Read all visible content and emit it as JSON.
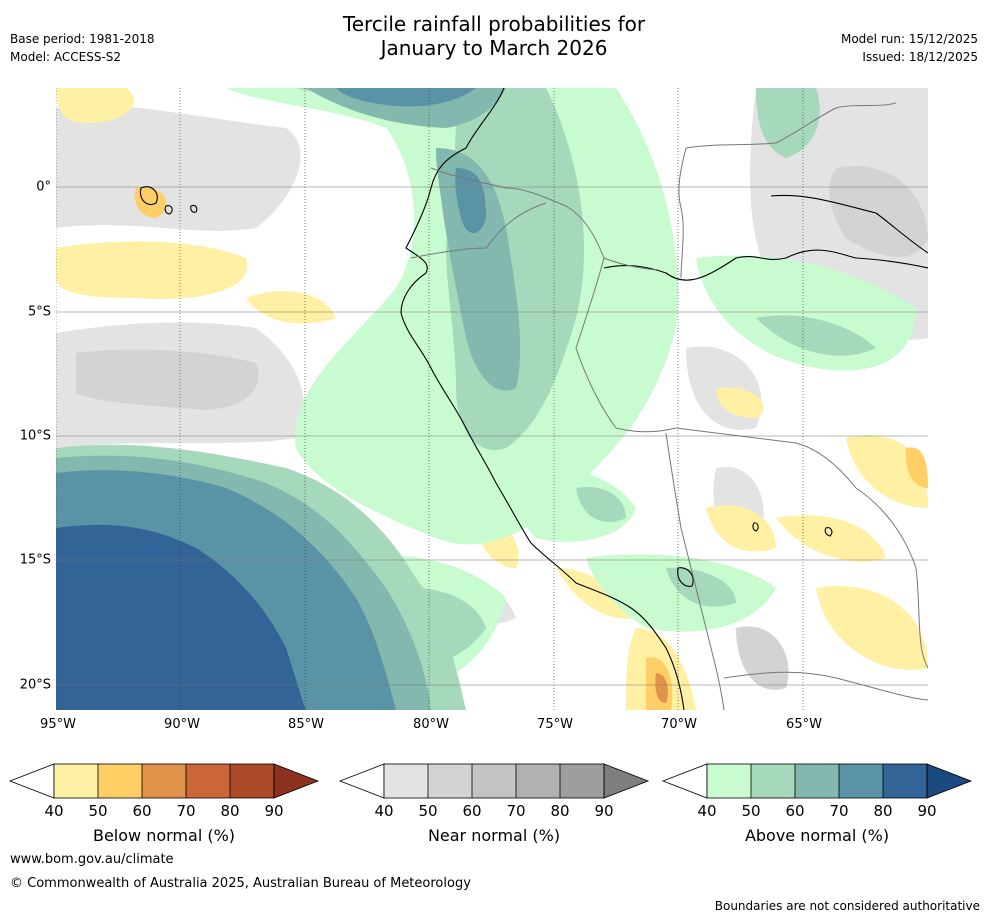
{
  "header": {
    "title_line1": "Tercile rainfall probabilities for",
    "title_line2": "January to March 2026",
    "base_period": "Base period: 1981-2018",
    "model": "Model: ACCESS-S2",
    "model_run": "Model run: 15/12/2025",
    "issued": "Issued: 18/12/2025"
  },
  "map": {
    "region": "Western South America and Eastern Pacific",
    "lon_labels": [
      "95°W",
      "90°W",
      "85°W",
      "80°W",
      "75°W",
      "70°W",
      "65°W"
    ],
    "lat_labels": [
      "0°",
      "5°S",
      "10°S",
      "15°S",
      "20°S"
    ]
  },
  "legend": [
    {
      "label": "Below normal (%)",
      "ticks": [
        "40",
        "50",
        "60",
        "70",
        "80",
        "90"
      ],
      "colors": [
        "#fff0a4",
        "#ffcf66",
        "#e0924a",
        "#ca6637",
        "#aa4a27"
      ],
      "over_color": "#8e3220"
    },
    {
      "label": "Near normal (%)",
      "ticks": [
        "40",
        "50",
        "60",
        "70",
        "80",
        "90"
      ],
      "colors": [
        "#e3e3e3",
        "#d3d3d3",
        "#c3c3c3",
        "#b1b1b1",
        "#9e9e9e"
      ],
      "over_color": "#7e7e7e"
    },
    {
      "label": "Above normal (%)",
      "ticks": [
        "40",
        "50",
        "60",
        "70",
        "80",
        "90"
      ],
      "colors": [
        "#c8fbcf",
        "#a6d9bb",
        "#82b8ad",
        "#5b93a6",
        "#326497"
      ],
      "over_color": "#1a4a80"
    }
  ],
  "footer": {
    "website": "www.bom.gov.au/climate",
    "copyright": "© Commonwealth of Australia 2025, Australian Bureau of Meteorology",
    "disclaimer": "Boundaries are not considered authoritative"
  }
}
